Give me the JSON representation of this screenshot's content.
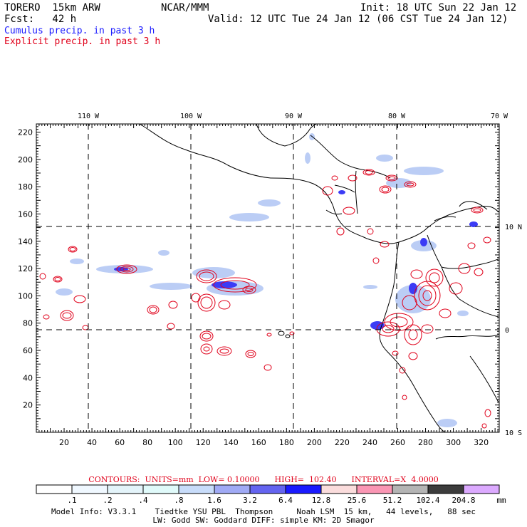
{
  "header": {
    "model_name": "TORERO  15km ARW",
    "center": "NCAR/MMM",
    "init": "Init: 18 UTC Sun 22 Jan 12",
    "fcst": "Fcst:   42 h",
    "valid": "Valid: 12 UTC Tue 24 Jan 12 (06 CST Tue 24 Jan 12)"
  },
  "legend_lines": {
    "cumulus": "Cumulus precip. in past 3 h",
    "explicit": "Explicit precip. in past 3 h",
    "cumulus_color": "#1a1aff",
    "explicit_color": "#e0001a"
  },
  "map": {
    "lon_labels": [
      "110 W",
      "100 W",
      "90 W",
      "80 W",
      "70 W"
    ],
    "lat_labels": [
      "10 N",
      "0",
      "10 S"
    ],
    "x_ticks": [
      "20",
      "40",
      "60",
      "80",
      "100",
      "120",
      "140",
      "160",
      "180",
      "200",
      "220",
      "240",
      "260",
      "280",
      "300",
      "320"
    ],
    "y_ticks": [
      "20",
      "40",
      "60",
      "80",
      "100",
      "120",
      "140",
      "160",
      "180",
      "200",
      "220"
    ],
    "x_range": [
      0,
      333
    ],
    "y_range": [
      0,
      226
    ]
  },
  "contours": {
    "text": "CONTOURS:  UNITS=mm  LOW= 0.10000      HIGH=  102.40      INTERVAL=X  4.0000"
  },
  "colorbar": {
    "labels": [
      ".1",
      ".2",
      ".4",
      ".8",
      "1.6",
      "3.2",
      "6.4",
      "12.8",
      "25.6",
      "51.2",
      "102.4",
      "204.8",
      "mm"
    ],
    "colors": [
      "#ffffff",
      "#f0f8ff",
      "#e4f4fa",
      "#e0fafa",
      "#c8dcfa",
      "#a0aaf5",
      "#6464f0",
      "#1a1aff",
      "#fadcdc",
      "#fa96b4",
      "#b4b4b4",
      "#3c3c3c",
      "#dcaaff"
    ]
  },
  "model_info": {
    "line1": "Model Info: V3.3.1    Tiedtke YSU PBL  Thompson     Noah LSM  15 km,   44 levels,   88 sec",
    "line2": "LW: Godd SW: Goddard DIFF: simple KM: 2D Smagor"
  }
}
